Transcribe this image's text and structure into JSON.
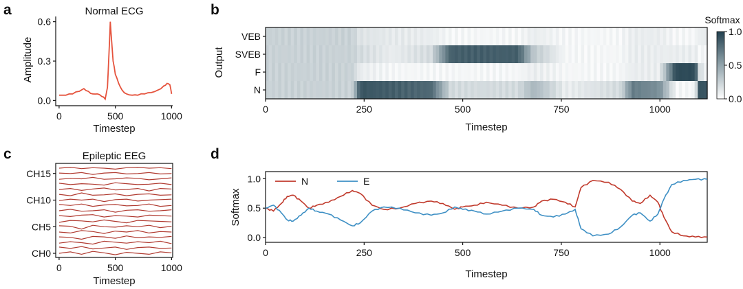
{
  "panels": {
    "a": {
      "letter": "a",
      "title": "Normal ECG",
      "xlabel": "Timestep",
      "ylabel": "Amplitude"
    },
    "b": {
      "letter": "b",
      "xlabel": "Timestep",
      "ylabel": "Output",
      "colorbar_title": "Softmax"
    },
    "c": {
      "letter": "c",
      "title": "Epileptic EEG",
      "xlabel": "Timestep"
    },
    "d": {
      "letter": "d",
      "xlabel": "Timestep",
      "ylabel": "Softmax"
    }
  },
  "colors": {
    "ecg_line": "#e5533d",
    "eeg_line": "#b03a30",
    "series_N": "#c0392b",
    "series_E": "#3d8fc4",
    "heat_high": "#23414f",
    "heat_low": "#ffffff"
  },
  "chart_data": [
    {
      "id": "a",
      "type": "line",
      "title": "Normal ECG",
      "xlabel": "Timestep",
      "ylabel": "Amplitude",
      "xlim": [
        -30,
        1010
      ],
      "ylim": [
        -0.04,
        0.64
      ],
      "xticks": [
        0,
        500,
        1000
      ],
      "yticks": [
        0.0,
        0.3,
        0.6
      ],
      "ytick_labels": [
        "0.0",
        "0.3",
        "0.6"
      ],
      "x": [
        0,
        60,
        120,
        180,
        220,
        260,
        300,
        340,
        380,
        410,
        430,
        445,
        455,
        465,
        480,
        500,
        530,
        560,
        600,
        650,
        700,
        760,
        820,
        880,
        930,
        960,
        985,
        1000
      ],
      "y": [
        0.04,
        0.04,
        0.05,
        0.07,
        0.09,
        0.07,
        0.05,
        0.05,
        0.03,
        0.01,
        0.1,
        0.38,
        0.6,
        0.48,
        0.3,
        0.2,
        0.13,
        0.08,
        0.05,
        0.04,
        0.04,
        0.05,
        0.06,
        0.08,
        0.11,
        0.13,
        0.12,
        0.05
      ]
    },
    {
      "id": "b",
      "type": "heatmap",
      "xlabel": "Timestep",
      "ylabel": "Output",
      "rows": [
        "VEB",
        "SVEB",
        "F",
        "N"
      ],
      "xlim": [
        0,
        1120
      ],
      "xticks": [
        0,
        250,
        500,
        750,
        1000
      ],
      "colorbar": {
        "label": "Softmax",
        "range": [
          0.0,
          1.0
        ],
        "ticks": [
          0.0,
          0.5,
          1.0
        ],
        "tick_labels": [
          "0.0",
          "0.5",
          "1.0"
        ]
      },
      "x": [
        0,
        220,
        240,
        320,
        420,
        470,
        640,
        680,
        760,
        900,
        930,
        1000,
        1040,
        1090,
        1100,
        1120
      ],
      "values": {
        "VEB": [
          0.25,
          0.25,
          0.15,
          0.12,
          0.1,
          0.05,
          0.05,
          0.1,
          0.05,
          0.05,
          0.1,
          0.1,
          0.05,
          0.05,
          0.1,
          0.1
        ],
        "SVEB": [
          0.25,
          0.25,
          0.2,
          0.1,
          0.2,
          0.85,
          0.85,
          0.3,
          0.05,
          0.05,
          0.1,
          0.1,
          0.1,
          0.1,
          0.05,
          0.05
        ],
        "F": [
          0.25,
          0.25,
          0.1,
          0.05,
          0.05,
          0.05,
          0.05,
          0.1,
          0.05,
          0.05,
          0.1,
          0.1,
          0.95,
          0.95,
          0.2,
          0.05
        ],
        "N": [
          0.25,
          0.25,
          0.9,
          0.85,
          0.8,
          0.2,
          0.2,
          0.4,
          0.1,
          0.2,
          0.7,
          0.6,
          0.05,
          0.05,
          0.9,
          0.9
        ]
      }
    },
    {
      "id": "c",
      "type": "line",
      "title": "Epileptic EEG",
      "xlabel": "Timestep",
      "xlim": [
        -30,
        1010
      ],
      "xticks": [
        0,
        500,
        1000
      ],
      "ytick_labels": [
        "CH0",
        "CH5",
        "CH10",
        "CH15"
      ],
      "channels": 17,
      "series": [
        {
          "values": [
            0.0,
            0.3,
            -0.2,
            0.4,
            0.1,
            -0.3,
            0.2,
            0.0,
            -0.2,
            0.3,
            0.1
          ]
        },
        {
          "values": [
            0.2,
            -0.1,
            0.3,
            -0.2,
            0.0,
            0.2,
            -0.3,
            0.1,
            0.2,
            -0.1,
            0.0
          ]
        },
        {
          "values": [
            -0.1,
            0.2,
            0.0,
            -0.3,
            0.3,
            0.1,
            -0.1,
            0.2,
            0.0,
            0.3,
            -0.2
          ]
        },
        {
          "values": [
            0.1,
            0.0,
            -0.4,
            0.2,
            0.1,
            -0.2,
            0.3,
            -0.1,
            0.1,
            0.0,
            0.2
          ]
        },
        {
          "values": [
            0.0,
            -0.2,
            0.3,
            0.1,
            -0.3,
            0.2,
            0.0,
            0.3,
            -0.2,
            0.1,
            0.0
          ]
        },
        {
          "values": [
            0.2,
            0.1,
            -0.5,
            0.3,
            0.0,
            -0.1,
            0.2,
            0.0,
            0.3,
            -0.2,
            0.1
          ]
        },
        {
          "values": [
            -0.2,
            0.2,
            0.1,
            -0.1,
            0.3,
            0.0,
            -0.3,
            0.2,
            0.1,
            0.0,
            -0.1
          ]
        },
        {
          "values": [
            0.1,
            -0.1,
            0.2,
            0.3,
            -0.2,
            0.1,
            0.0,
            -0.2,
            0.2,
            0.1,
            0.0
          ]
        },
        {
          "values": [
            0.0,
            0.3,
            -0.1,
            0.0,
            0.2,
            -0.3,
            0.1,
            0.2,
            -0.1,
            0.0,
            0.2
          ]
        },
        {
          "values": [
            0.2,
            0.0,
            0.3,
            -0.2,
            0.1,
            0.2,
            -0.1,
            0.0,
            0.3,
            -0.2,
            0.0
          ]
        },
        {
          "values": [
            -0.1,
            0.2,
            0.0,
            0.2,
            -0.3,
            0.1,
            0.2,
            -0.2,
            0.0,
            0.1,
            0.2
          ]
        },
        {
          "values": [
            0.1,
            -0.2,
            0.4,
            -0.1,
            0.0,
            0.2,
            -0.2,
            0.1,
            0.2,
            -0.1,
            0.0
          ]
        },
        {
          "values": [
            0.0,
            0.2,
            -0.2,
            0.1,
            0.3,
            -0.1,
            0.0,
            0.2,
            -0.3,
            0.2,
            0.1
          ]
        },
        {
          "values": [
            0.2,
            -0.1,
            0.1,
            0.0,
            -0.2,
            0.3,
            0.1,
            -0.1,
            0.0,
            0.2,
            -0.1
          ]
        },
        {
          "values": [
            -0.1,
            0.1,
            0.0,
            0.3,
            -0.1,
            0.0,
            0.2,
            0.1,
            -0.2,
            0.0,
            0.2
          ]
        },
        {
          "values": [
            0.1,
            0.0,
            0.2,
            -0.2,
            0.1,
            0.2,
            -0.1,
            0.0,
            0.2,
            -0.1,
            0.0
          ]
        },
        {
          "values": [
            0.0,
            0.2,
            -0.1,
            0.1,
            0.0,
            -0.2,
            0.1,
            0.2,
            0.0,
            0.1,
            -0.1
          ]
        }
      ]
    },
    {
      "id": "d",
      "type": "line",
      "xlabel": "Timestep",
      "ylabel": "Softmax",
      "xlim": [
        0,
        1120
      ],
      "ylim": [
        -0.08,
        1.12
      ],
      "xticks": [
        0,
        250,
        500,
        750,
        1000
      ],
      "yticks": [
        0.0,
        0.5,
        1.0
      ],
      "ytick_labels": [
        "0.0",
        "0.5",
        "1.0"
      ],
      "legend": "top-left",
      "x": [
        0,
        20,
        40,
        55,
        70,
        90,
        110,
        130,
        160,
        190,
        220,
        240,
        270,
        300,
        340,
        380,
        420,
        450,
        480,
        500,
        530,
        560,
        600,
        640,
        680,
        700,
        730,
        760,
        785,
        800,
        830,
        870,
        900,
        930,
        950,
        975,
        995,
        1010,
        1030,
        1060,
        1090,
        1120
      ],
      "series": [
        {
          "name": "N",
          "values": [
            0.5,
            0.45,
            0.58,
            0.7,
            0.72,
            0.62,
            0.5,
            0.55,
            0.6,
            0.7,
            0.8,
            0.75,
            0.55,
            0.48,
            0.5,
            0.58,
            0.62,
            0.58,
            0.48,
            0.52,
            0.55,
            0.6,
            0.55,
            0.5,
            0.52,
            0.62,
            0.65,
            0.6,
            0.52,
            0.85,
            0.97,
            0.94,
            0.82,
            0.62,
            0.58,
            0.72,
            0.6,
            0.35,
            0.1,
            0.03,
            0.01,
            0.01
          ]
        },
        {
          "name": "E",
          "values": [
            0.5,
            0.55,
            0.42,
            0.3,
            0.28,
            0.38,
            0.5,
            0.45,
            0.4,
            0.3,
            0.2,
            0.25,
            0.45,
            0.52,
            0.5,
            0.42,
            0.38,
            0.42,
            0.52,
            0.48,
            0.45,
            0.4,
            0.45,
            0.5,
            0.48,
            0.38,
            0.35,
            0.4,
            0.48,
            0.15,
            0.03,
            0.06,
            0.18,
            0.38,
            0.42,
            0.28,
            0.4,
            0.65,
            0.9,
            0.97,
            0.99,
            0.99
          ]
        }
      ]
    }
  ]
}
